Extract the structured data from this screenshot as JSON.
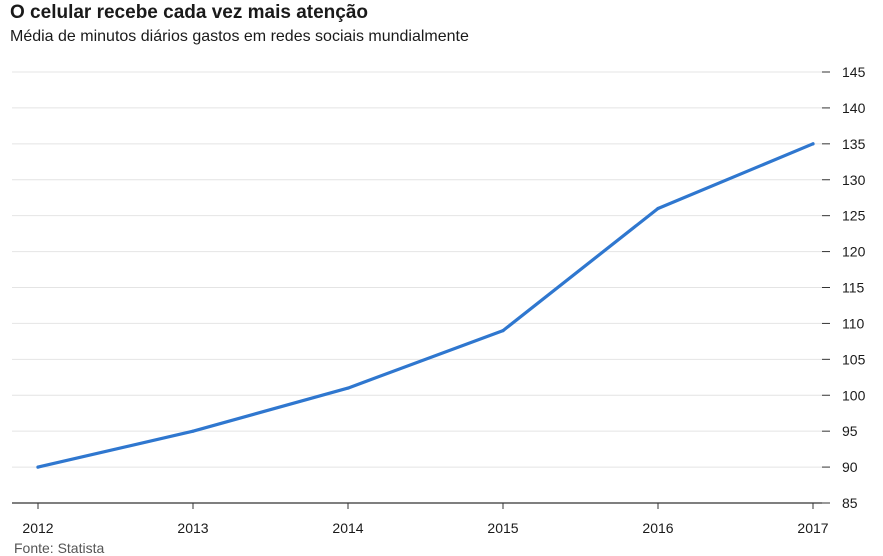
{
  "header": {
    "title": "O celular recebe cada vez mais atenção",
    "subtitle": "Média de minutos diários gastos em redes sociais mundialmente"
  },
  "footer": {
    "source": "Fonte: Statista"
  },
  "colors": {
    "line": "#2f77cf",
    "grid": "#e4e4e4",
    "axis": "#333333"
  },
  "chart_data": {
    "type": "line",
    "title": "O celular recebe cada vez mais atenção",
    "subtitle": "Média de minutos diários gastos em redes sociais mundialmente",
    "x": [
      "2012",
      "2013",
      "2014",
      "2015",
      "2016",
      "2017"
    ],
    "series": [
      {
        "values": [
          90,
          95,
          101,
          109,
          126,
          135
        ]
      }
    ],
    "yticks": [
      85,
      90,
      95,
      100,
      105,
      110,
      115,
      120,
      125,
      130,
      135,
      140,
      145
    ],
    "ylim": [
      85,
      145
    ],
    "y_axis_position": "right",
    "grid": true,
    "legend": "none",
    "source": "Fonte: Statista"
  }
}
